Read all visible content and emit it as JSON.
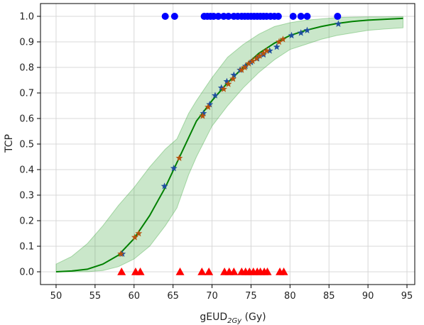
{
  "chart_data": {
    "type": "scatter",
    "title": "",
    "xlabel": {
      "main": "gEUD",
      "sub": "2Gy",
      "unit": " (Gy)"
    },
    "ylabel": "TCP",
    "xlim": [
      48,
      96
    ],
    "ylim": [
      -0.05,
      1.05
    ],
    "x_ticks": [
      50,
      55,
      60,
      65,
      70,
      75,
      80,
      85,
      90,
      95
    ],
    "y_ticks": [
      0.0,
      0.1,
      0.2,
      0.3,
      0.4,
      0.5,
      0.6,
      0.7,
      0.8,
      0.9,
      1.0
    ],
    "grid": true,
    "fit_curve": {
      "color": "#008000",
      "x": [
        50,
        52,
        54,
        56,
        58,
        60,
        62,
        64,
        66,
        68,
        70,
        72,
        74,
        76,
        78,
        80,
        82,
        84,
        86,
        88,
        90,
        92,
        94.5
      ],
      "y": [
        0.0,
        0.003,
        0.01,
        0.03,
        0.065,
        0.13,
        0.22,
        0.33,
        0.46,
        0.59,
        0.67,
        0.74,
        0.8,
        0.855,
        0.895,
        0.925,
        0.945,
        0.96,
        0.972,
        0.98,
        0.985,
        0.988,
        0.992
      ]
    },
    "confidence_band": {
      "color": "#2ca02c",
      "x": [
        50,
        52,
        54,
        56,
        58,
        60,
        62,
        64,
        65.5,
        67,
        68,
        70,
        72,
        74,
        76,
        78,
        80,
        82,
        84,
        86,
        88,
        90,
        92,
        94.5
      ],
      "lower": [
        0.0,
        0.0,
        0.0,
        0.005,
        0.02,
        0.05,
        0.1,
        0.18,
        0.25,
        0.38,
        0.45,
        0.57,
        0.65,
        0.72,
        0.78,
        0.83,
        0.87,
        0.89,
        0.91,
        0.925,
        0.935,
        0.945,
        0.95,
        0.955
      ],
      "upper": [
        0.03,
        0.06,
        0.11,
        0.18,
        0.26,
        0.33,
        0.41,
        0.48,
        0.52,
        0.62,
        0.67,
        0.76,
        0.84,
        0.89,
        0.93,
        0.96,
        0.975,
        0.985,
        0.99,
        0.995,
        0.997,
        0.998,
        0.998,
        0.999
      ]
    },
    "series": [
      {
        "marker": "circle",
        "color": "#0000ff",
        "x": [
          64,
          65.2,
          69,
          69.4,
          69.8,
          70.2,
          70.8,
          71.5,
          72.1,
          72.8,
          73.3,
          73.8,
          74.2,
          74.6,
          75,
          75.4,
          75.8,
          76.2,
          76.6,
          77,
          77.5,
          78,
          78.5,
          80.4,
          81.4,
          82.2,
          86.1
        ],
        "y": [
          1,
          1,
          1,
          1,
          1,
          1,
          1,
          1,
          1,
          1,
          1,
          1,
          1,
          1,
          1,
          1,
          1,
          1,
          1,
          1,
          1,
          1,
          1,
          1,
          1,
          1,
          1
        ]
      },
      {
        "marker": "triangle",
        "color": "#ff0000",
        "x": [
          58.4,
          60.2,
          60.8,
          65.9,
          68.7,
          69.6,
          71.6,
          72.2,
          72.8,
          73.8,
          74.3,
          74.8,
          75.3,
          75.8,
          76.2,
          76.7,
          77.1,
          78.7,
          79.2
        ],
        "y": [
          0,
          0,
          0,
          0,
          0,
          0,
          0,
          0,
          0,
          0,
          0,
          0,
          0,
          0,
          0,
          0,
          0,
          0,
          0
        ]
      },
      {
        "marker": "star",
        "color": "#1f4fa0",
        "x": [
          58.5,
          63.9,
          65.1,
          68.9,
          69.7,
          70.4,
          71.2,
          71.9,
          72.8,
          73.6,
          74.3,
          75,
          75.8,
          76.6,
          77.4,
          78.3,
          80.2,
          81.4,
          82.2,
          86.2
        ],
        "y": [
          0.07,
          0.335,
          0.405,
          0.62,
          0.655,
          0.69,
          0.72,
          0.745,
          0.77,
          0.79,
          0.805,
          0.82,
          0.835,
          0.85,
          0.865,
          0.88,
          0.925,
          0.935,
          0.945,
          0.97
        ]
      },
      {
        "marker": "star",
        "color": "#b5530f",
        "x": [
          58.3,
          60.1,
          60.6,
          65.8,
          68.8,
          69.5,
          71.5,
          72.1,
          72.7,
          73.8,
          74.2,
          74.7,
          75.2,
          75.7,
          76.1,
          76.6,
          77,
          78.6,
          79.1
        ],
        "y": [
          0.07,
          0.135,
          0.15,
          0.445,
          0.61,
          0.645,
          0.715,
          0.735,
          0.755,
          0.79,
          0.8,
          0.815,
          0.825,
          0.835,
          0.845,
          0.855,
          0.865,
          0.9,
          0.91
        ]
      }
    ]
  }
}
